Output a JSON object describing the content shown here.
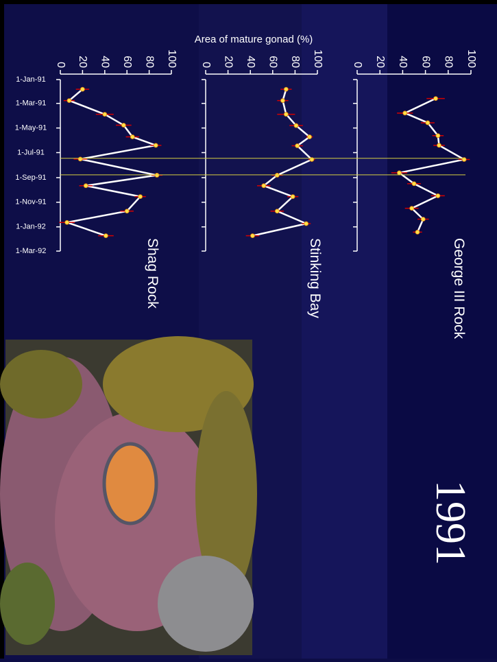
{
  "title": "1991",
  "value_axis_label": "Area of mature gonad (%)",
  "date_axis": {
    "xlim": [
      "1991-01-01",
      "1992-03-01"
    ],
    "xticks": [
      {
        "value": "1991-01-01",
        "label": "1-Jan-91"
      },
      {
        "value": "1991-03-01",
        "label": "1-Mar-91"
      },
      {
        "value": "1991-05-01",
        "label": "1-May-91"
      },
      {
        "value": "1991-07-01",
        "label": "1-Jul-91"
      },
      {
        "value": "1991-09-01",
        "label": "1-Sep-91"
      },
      {
        "value": "1991-11-01",
        "label": "1-Nov-91"
      },
      {
        "value": "1992-01-01",
        "label": "1-Jan-92"
      },
      {
        "value": "1992-03-01",
        "label": "1-Mar-92"
      }
    ]
  },
  "reference_dates": [
    "1991-07-15",
    "1991-08-25"
  ],
  "chart_data": [
    {
      "type": "line",
      "title": "George III Rock",
      "ylim": [
        0,
        100
      ],
      "yticks": [
        0,
        20,
        40,
        60,
        80,
        100
      ],
      "x": [
        "1991-02-17",
        "1991-03-25",
        "1991-04-18",
        "1991-05-20",
        "1991-06-13",
        "1991-07-18",
        "1991-08-20",
        "1991-09-16",
        "1991-10-16",
        "1991-11-16",
        "1991-12-13",
        "1992-01-14"
      ],
      "values": [
        69,
        42,
        62,
        71,
        72,
        94,
        37,
        50,
        71,
        48,
        58,
        53
      ],
      "errors": [
        8,
        7,
        6,
        5,
        5,
        5,
        7,
        6,
        6,
        6,
        5,
        4
      ],
      "line_color": "#ffffff",
      "marker_color": "#ffe14a",
      "error_color": "#d40000"
    },
    {
      "type": "line",
      "title": "Stinking Bay",
      "ylim": [
        0,
        100
      ],
      "yticks": [
        0,
        20,
        40,
        60,
        80,
        100
      ],
      "x": [
        "1991-01-25",
        "1991-02-22",
        "1991-03-28",
        "1991-04-25",
        "1991-05-23",
        "1991-06-14",
        "1991-07-18",
        "1991-08-26",
        "1991-09-21",
        "1991-10-18",
        "1991-11-23",
        "1991-12-24",
        "1992-01-23"
      ],
      "values": [
        72,
        69,
        72,
        81,
        93,
        82,
        95,
        64,
        52,
        78,
        64,
        90,
        42
      ],
      "errors": [
        5,
        5,
        8,
        6,
        3,
        5,
        3,
        5,
        6,
        5,
        6,
        4,
        6
      ],
      "line_color": "#ffffff",
      "marker_color": "#ffe14a",
      "error_color": "#d40000"
    },
    {
      "type": "line",
      "title": "Shag Rock",
      "ylim": [
        0,
        100
      ],
      "yticks": [
        0,
        20,
        40,
        60,
        80,
        100
      ],
      "x": [
        "1991-01-25",
        "1991-02-22",
        "1991-03-28",
        "1991-04-24",
        "1991-05-23",
        "1991-06-13",
        "1991-07-17",
        "1991-08-26",
        "1991-09-21",
        "1991-10-18",
        "1991-11-23",
        "1991-12-21",
        "1992-01-23"
      ],
      "values": [
        20,
        8,
        40,
        57,
        65,
        86,
        18,
        87,
        23,
        72,
        60,
        6,
        41
      ],
      "errors": [
        6,
        5,
        8,
        7,
        6,
        5,
        6,
        5,
        6,
        5,
        6,
        7,
        7
      ],
      "line_color": "#ffffff",
      "marker_color": "#ffe14a",
      "error_color": "#d40000"
    }
  ]
}
